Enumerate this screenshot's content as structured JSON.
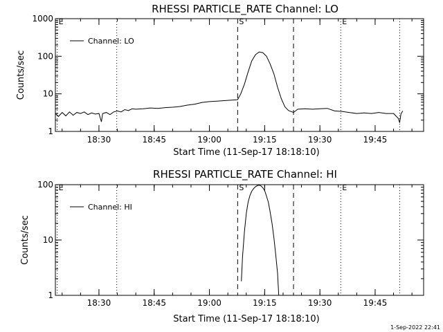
{
  "footer": "1-Sep-2022 22:41",
  "chart_data": [
    {
      "type": "line",
      "title": "RHESSI PARTICLE_RATE Channel: LO",
      "xlabel": "Start Time (11-Sep-17 18:18:10)",
      "ylabel": "Counts/sec",
      "y_scale": "log",
      "ylim": [
        1,
        1000
      ],
      "xlim": [
        "18:18:10",
        "19:58:10"
      ],
      "y_ticks": [
        "1",
        "10",
        "100",
        "1000"
      ],
      "x_ticks": [
        "18:30",
        "18:45",
        "19:00",
        "19:15",
        "19:30",
        "19:45"
      ],
      "legend": {
        "placement": "top-left",
        "entries": [
          "Channel: LO"
        ]
      },
      "markers": [
        {
          "label": "E",
          "time": "18:18:40",
          "style": "dotted"
        },
        {
          "label": "",
          "time": "18:34:50",
          "style": "dotted"
        },
        {
          "label": "S",
          "time": "19:07:40",
          "style": "dashed"
        },
        {
          "label": "",
          "time": "19:22:50",
          "style": "dashed"
        },
        {
          "label": "E",
          "time": "19:35:40",
          "style": "dotted"
        },
        {
          "label": "",
          "time": "19:51:40",
          "style": "dotted"
        }
      ],
      "series": [
        {
          "name": "Channel: LO",
          "points": [
            [
              "18:18:10",
              3.0
            ],
            [
              "18:19:00",
              2.5
            ],
            [
              "18:20:00",
              3.2
            ],
            [
              "18:21:00",
              2.6
            ],
            [
              "18:22:00",
              3.3
            ],
            [
              "18:23:00",
              2.7
            ],
            [
              "18:24:00",
              3.2
            ],
            [
              "18:25:00",
              3.0
            ],
            [
              "18:26:00",
              3.3
            ],
            [
              "18:27:00",
              2.8
            ],
            [
              "18:28:00",
              3.1
            ],
            [
              "18:29:00",
              2.9
            ],
            [
              "18:30:00",
              3.0
            ],
            [
              "18:30:40",
              1.8
            ],
            [
              "18:31:00",
              3.0
            ],
            [
              "18:32:00",
              3.2
            ],
            [
              "18:33:00",
              2.8
            ],
            [
              "18:34:00",
              3.3
            ],
            [
              "18:35:00",
              3.5
            ],
            [
              "18:36:00",
              3.3
            ],
            [
              "18:37:00",
              3.8
            ],
            [
              "18:38:00",
              3.6
            ],
            [
              "18:39:00",
              4.0
            ],
            [
              "18:40:00",
              3.9
            ],
            [
              "18:42:00",
              4.0
            ],
            [
              "18:44:00",
              4.2
            ],
            [
              "18:46:00",
              4.1
            ],
            [
              "18:48:00",
              4.3
            ],
            [
              "18:50:00",
              4.4
            ],
            [
              "18:52:00",
              4.6
            ],
            [
              "18:54:00",
              5.0
            ],
            [
              "18:56:00",
              5.3
            ],
            [
              "18:58:00",
              5.9
            ],
            [
              "19:00:00",
              6.2
            ],
            [
              "19:02:00",
              6.4
            ],
            [
              "19:04:00",
              6.6
            ],
            [
              "19:06:00",
              6.8
            ],
            [
              "19:07:40",
              7.0
            ],
            [
              "19:08:30",
              10
            ],
            [
              "19:09:30",
              18
            ],
            [
              "19:10:30",
              38
            ],
            [
              "19:11:30",
              75
            ],
            [
              "19:12:30",
              110
            ],
            [
              "19:13:30",
              130
            ],
            [
              "19:14:30",
              125
            ],
            [
              "19:15:30",
              100
            ],
            [
              "19:16:30",
              62
            ],
            [
              "19:17:30",
              34
            ],
            [
              "19:18:30",
              15
            ],
            [
              "19:19:30",
              7.5
            ],
            [
              "19:20:30",
              4.5
            ],
            [
              "19:21:30",
              3.6
            ],
            [
              "19:22:50",
              3.2
            ],
            [
              "19:24:00",
              3.9
            ],
            [
              "19:26:00",
              4.0
            ],
            [
              "19:28:00",
              3.9
            ],
            [
              "19:30:00",
              4.0
            ],
            [
              "19:32:00",
              4.1
            ],
            [
              "19:34:00",
              3.5
            ],
            [
              "19:36:00",
              3.4
            ],
            [
              "19:38:00",
              3.2
            ],
            [
              "19:40:00",
              3.0
            ],
            [
              "19:42:00",
              3.1
            ],
            [
              "19:44:00",
              3.0
            ],
            [
              "19:46:00",
              3.2
            ],
            [
              "19:48:00",
              3.0
            ],
            [
              "19:50:00",
              3.0
            ],
            [
              "19:51:20",
              2.2
            ],
            [
              "19:51:40",
              1.7
            ],
            [
              "19:52:00",
              2.9
            ],
            [
              "19:52:30",
              3.5
            ]
          ]
        }
      ]
    },
    {
      "type": "line",
      "title": "RHESSI PARTICLE_RATE Channel: HI",
      "xlabel": "Start Time (11-Sep-17 18:18:10)",
      "ylabel": "Counts/sec",
      "y_scale": "log",
      "ylim": [
        1,
        100
      ],
      "xlim": [
        "18:18:10",
        "19:58:10"
      ],
      "y_ticks": [
        "1",
        "10",
        "100"
      ],
      "x_ticks": [
        "18:30",
        "18:45",
        "19:00",
        "19:15",
        "19:30",
        "19:45"
      ],
      "legend": {
        "placement": "top-left",
        "entries": [
          "Channel: HI"
        ]
      },
      "markers": [
        {
          "label": "E",
          "time": "18:18:40",
          "style": "dotted"
        },
        {
          "label": "",
          "time": "18:34:50",
          "style": "dotted"
        },
        {
          "label": "S",
          "time": "19:07:40",
          "style": "dashed"
        },
        {
          "label": "",
          "time": "19:22:50",
          "style": "dashed"
        },
        {
          "label": "E",
          "time": "19:35:40",
          "style": "dotted"
        },
        {
          "label": "",
          "time": "19:51:40",
          "style": "dotted"
        }
      ],
      "series": [
        {
          "name": "Channel: HI",
          "points": [
            [
              "19:08:40",
              1.8
            ],
            [
              "19:09:00",
              5.0
            ],
            [
              "19:09:30",
              14
            ],
            [
              "19:10:00",
              30
            ],
            [
              "19:10:30",
              48
            ],
            [
              "19:11:00",
              64
            ],
            [
              "19:11:30",
              76
            ],
            [
              "19:12:00",
              85
            ],
            [
              "19:12:30",
              92
            ],
            [
              "19:13:00",
              96
            ],
            [
              "19:13:30",
              98
            ],
            [
              "19:14:00",
              95
            ],
            [
              "19:14:30",
              88
            ],
            [
              "19:15:00",
              78
            ],
            [
              "19:15:30",
              62
            ],
            [
              "19:16:00",
              48
            ],
            [
              "19:16:30",
              32
            ],
            [
              "19:17:00",
              20
            ],
            [
              "19:17:30",
              11
            ],
            [
              "19:18:00",
              5.5
            ],
            [
              "19:18:30",
              2.5
            ],
            [
              "19:18:50",
              1.0
            ]
          ]
        }
      ]
    }
  ]
}
